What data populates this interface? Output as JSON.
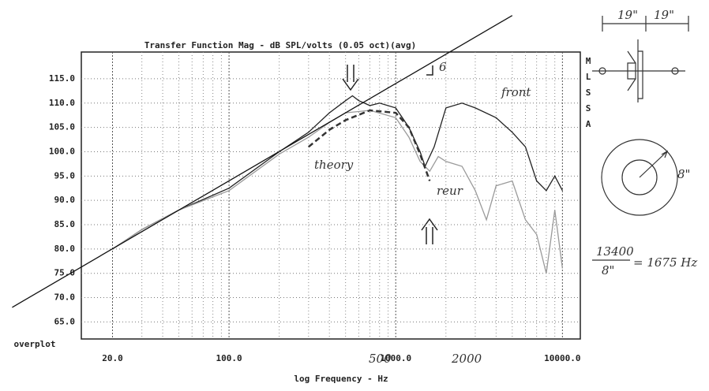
{
  "chart_data": {
    "type": "line",
    "title": "Transfer Function Mag - dB SPL/volts (0.05 oct)(avg)",
    "x_label": "log Frequency - Hz",
    "corner_label": "overplot",
    "side_label": [
      "M",
      "L",
      "S",
      "S",
      "A"
    ],
    "log_x": true,
    "grid": true,
    "xlim": [
      13,
      12800
    ],
    "ylim": [
      61.5,
      120.5
    ],
    "xticks": [
      {
        "value": 20,
        "label": "20.0"
      },
      {
        "value": 100,
        "label": "100.0"
      },
      {
        "value": 1000,
        "label": "1000.0"
      },
      {
        "value": 10000,
        "label": "10000.0"
      }
    ],
    "xminor": [
      30,
      40,
      50,
      60,
      70,
      80,
      90,
      200,
      300,
      400,
      500,
      600,
      700,
      800,
      900,
      2000,
      3000,
      4000,
      5000,
      6000,
      7000,
      8000,
      9000
    ],
    "yticks": [
      {
        "value": 65,
        "label": "65.0"
      },
      {
        "value": 70,
        "label": "70.0"
      },
      {
        "value": 75,
        "label": "75.0"
      },
      {
        "value": 80,
        "label": "80.0"
      },
      {
        "value": 85,
        "label": "85.0"
      },
      {
        "value": 90,
        "label": "90.0"
      },
      {
        "value": 95,
        "label": "95.0"
      },
      {
        "value": 100,
        "label": "100.0"
      },
      {
        "value": 105,
        "label": "105.0"
      },
      {
        "value": 110,
        "label": "110.0"
      },
      {
        "value": 115,
        "label": "115.0"
      }
    ],
    "series": [
      {
        "name": "front",
        "color": "#222222",
        "x": [
          20,
          30,
          50,
          100,
          200,
          300,
          400,
          500,
          550,
          600,
          700,
          800,
          1000,
          1200,
          1400,
          1500,
          1700,
          2000,
          2500,
          3000,
          4000,
          5000,
          6000,
          7000,
          8000,
          9000,
          10000
        ],
        "values": [
          80,
          84,
          88,
          92.5,
          100,
          104,
          108,
          110.5,
          111.5,
          110.5,
          109.5,
          110,
          109,
          105,
          100,
          97,
          101,
          109,
          110,
          109,
          107,
          104,
          101,
          94,
          92,
          95,
          92
        ]
      },
      {
        "name": "reur",
        "color": "#9a9a9a",
        "x": [
          20,
          30,
          50,
          100,
          200,
          300,
          400,
          500,
          700,
          1000,
          1200,
          1400,
          1600,
          1800,
          2000,
          2500,
          3000,
          3500,
          4000,
          5000,
          6000,
          7000,
          8000,
          9000,
          10000
        ],
        "values": [
          80,
          84,
          88,
          92,
          99.5,
          103,
          106,
          108,
          108.5,
          107,
          103,
          98,
          96,
          99,
          98,
          97,
          92,
          86,
          93,
          94,
          86,
          83,
          75,
          88,
          76
        ]
      },
      {
        "name": "theory",
        "color": "#333333",
        "dashed": true,
        "x": [
          300,
          400,
          500,
          700,
          1000,
          1200,
          1400,
          1600
        ],
        "values": [
          101,
          104.5,
          106.5,
          108.5,
          108,
          105,
          99.5,
          94
        ]
      },
      {
        "name": "6",
        "color": "#111111",
        "x": [
          5,
          5000
        ],
        "values": [
          68,
          128
        ]
      }
    ],
    "annotations": [
      "500",
      "2000"
    ],
    "notes": [
      "19\"",
      "19\"",
      "8\"",
      "13400",
      "8\"",
      "= 1675 Hz"
    ]
  }
}
